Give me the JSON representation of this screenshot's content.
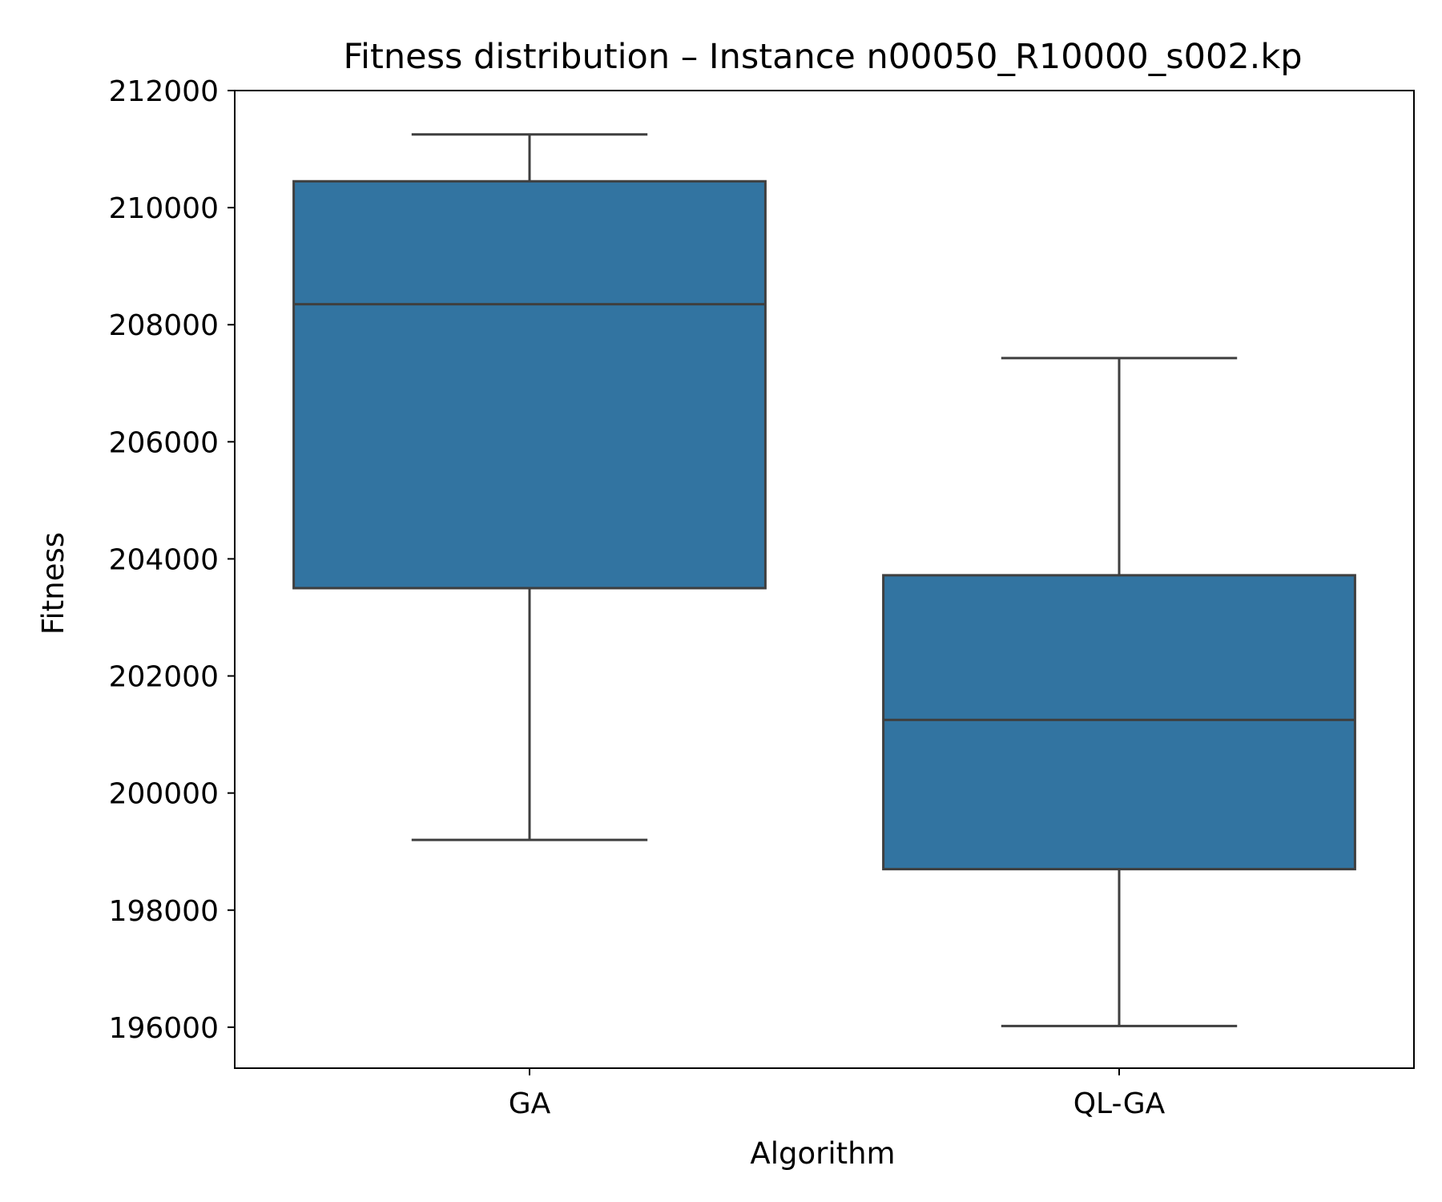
{
  "chart_data": {
    "type": "box",
    "title": "Fitness distribution – Instance n00050_R10000_s002.kp",
    "xlabel": "Algorithm",
    "ylabel": "Fitness",
    "categories": [
      "GA",
      "QL-GA"
    ],
    "ylim": [
      195300,
      212000
    ],
    "yticks": [
      196000,
      198000,
      200000,
      202000,
      204000,
      206000,
      208000,
      210000,
      212000
    ],
    "boxes": [
      {
        "category": "GA",
        "whisker_low": 199200,
        "q1": 203500,
        "median": 208350,
        "q3": 210450,
        "whisker_high": 211250
      },
      {
        "category": "QL-GA",
        "whisker_low": 196020,
        "q1": 198700,
        "median": 201250,
        "q3": 203720,
        "whisker_high": 207430
      }
    ],
    "colors": {
      "box_fill": "#3274a1",
      "line": "#3f3f3f"
    },
    "grid": false,
    "legend": "none"
  }
}
